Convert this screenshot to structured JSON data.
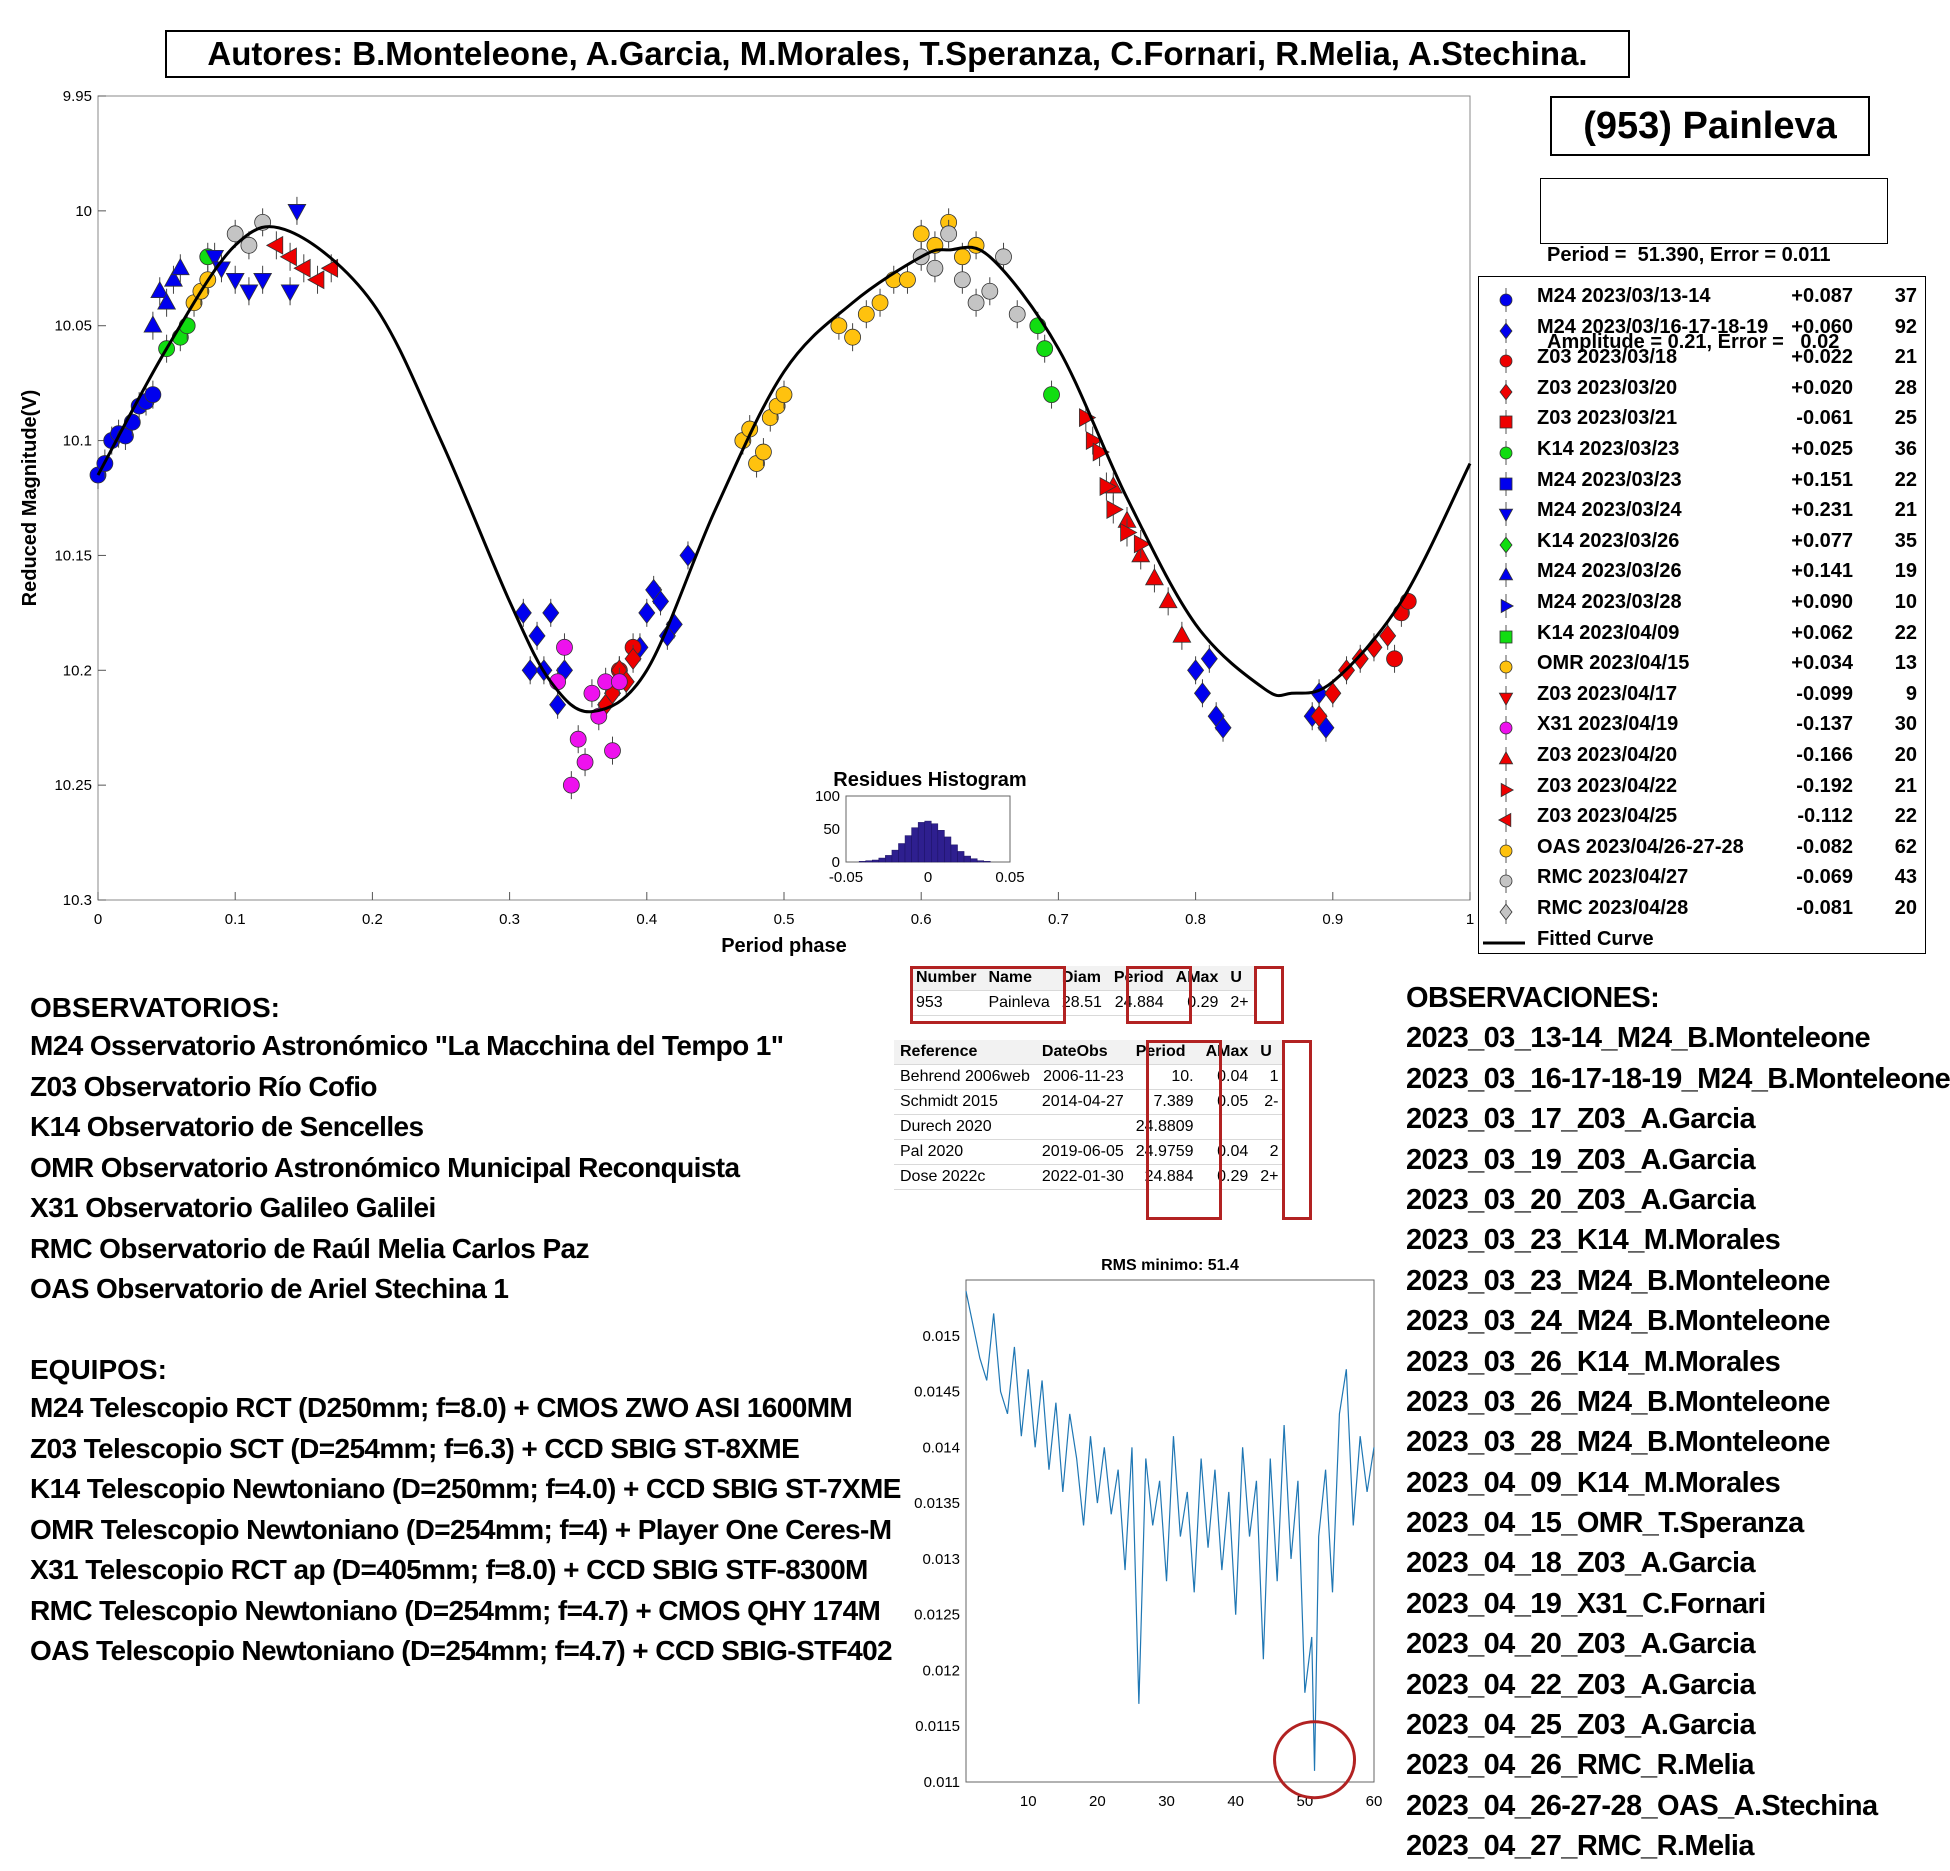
{
  "authors": "Autores: B.Monteleone, A.Garcia, M.Morales, T.Speranza, C.Fornari, R.Melia, A.Stechina.",
  "object_title": "(953) Painleva",
  "fit_info": {
    "period_line": "Period =  51.390, Error = 0.011",
    "amplitude_line": "Amplitude = 0.21, Error =   0.02"
  },
  "colors": {
    "blue": "#0000ee",
    "red": "#ee0000",
    "green": "#11dd11",
    "magenta": "#ee11ee",
    "orange": "#ffc20e",
    "gray": "#c4c4c4",
    "curve": "#000000",
    "rms": "#1f77b4",
    "hist": "#2e1f8f",
    "highlight": "#b22222"
  },
  "chart_data": [
    {
      "type": "scatter",
      "title": "",
      "xlabel": "Period phase",
      "ylabel": "Reduced Magnitude(V)",
      "xlim": [
        0,
        1
      ],
      "ylim": [
        9.95,
        10.3
      ],
      "y_reversed": true,
      "x_ticks": [
        "0",
        "0.1",
        "0.2",
        "0.3",
        "0.4",
        "0.5",
        "0.6",
        "0.7",
        "0.8",
        "0.9",
        "1"
      ],
      "y_ticks": [
        "9.95",
        "10",
        "10.05",
        "10.1",
        "10.15",
        "10.2",
        "10.25",
        "10.3"
      ],
      "grid": false,
      "legend_position": "right",
      "legend": [
        {
          "label": "M24 2023/03/13-14",
          "offset": "+0.087",
          "n": "37",
          "color": "blue",
          "marker": "circle"
        },
        {
          "label": "M24 2023/03/16-17-18-19",
          "offset": "+0.060",
          "n": "92",
          "color": "blue",
          "marker": "diamond"
        },
        {
          "label": "Z03 2023/03/18",
          "offset": "+0.022",
          "n": "21",
          "color": "red",
          "marker": "circle"
        },
        {
          "label": "Z03 2023/03/20",
          "offset": "+0.020",
          "n": "28",
          "color": "red",
          "marker": "diamond"
        },
        {
          "label": "Z03 2023/03/21",
          "offset": "-0.061",
          "n": "25",
          "color": "red",
          "marker": "square"
        },
        {
          "label": "K14 2023/03/23",
          "offset": "+0.025",
          "n": "36",
          "color": "green",
          "marker": "circle"
        },
        {
          "label": "M24 2023/03/23",
          "offset": "+0.151",
          "n": "22",
          "color": "blue",
          "marker": "square"
        },
        {
          "label": "M24 2023/03/24",
          "offset": "+0.231",
          "n": "21",
          "color": "blue",
          "marker": "tri-down"
        },
        {
          "label": "K14 2023/03/26",
          "offset": "+0.077",
          "n": "35",
          "color": "green",
          "marker": "diamond"
        },
        {
          "label": "M24 2023/03/26",
          "offset": "+0.141",
          "n": "19",
          "color": "blue",
          "marker": "tri-up"
        },
        {
          "label": "M24 2023/03/28",
          "offset": "+0.090",
          "n": "10",
          "color": "blue",
          "marker": "tri-right"
        },
        {
          "label": "K14 2023/04/09",
          "offset": "+0.062",
          "n": "22",
          "color": "green",
          "marker": "square"
        },
        {
          "label": "OMR 2023/04/15",
          "offset": "+0.034",
          "n": "13",
          "color": "orange",
          "marker": "circle"
        },
        {
          "label": "Z03 2023/04/17",
          "offset": "-0.099",
          "n": "9",
          "color": "red",
          "marker": "tri-down"
        },
        {
          "label": "X31 2023/04/19",
          "offset": "-0.137",
          "n": "30",
          "color": "magenta",
          "marker": "circle"
        },
        {
          "label": "Z03 2023/04/20",
          "offset": "-0.166",
          "n": "20",
          "color": "red",
          "marker": "tri-up"
        },
        {
          "label": "Z03 2023/04/22",
          "offset": "-0.192",
          "n": "21",
          "color": "red",
          "marker": "tri-right"
        },
        {
          "label": "Z03 2023/04/25",
          "offset": "-0.112",
          "n": "22",
          "color": "red",
          "marker": "tri-left"
        },
        {
          "label": "OAS 2023/04/26-27-28",
          "offset": "-0.082",
          "n": "62",
          "color": "orange",
          "marker": "circle"
        },
        {
          "label": "RMC 2023/04/27",
          "offset": "-0.069",
          "n": "43",
          "color": "gray",
          "marker": "circle"
        },
        {
          "label": "RMC 2023/04/28",
          "offset": "-0.081",
          "n": "20",
          "color": "gray",
          "marker": "diamond"
        },
        {
          "label": "Fitted Curve",
          "offset": "",
          "n": "",
          "color": "curve",
          "marker": "line"
        }
      ],
      "fitted_curve": {
        "x": [
          0,
          0.05,
          0.1,
          0.14,
          0.2,
          0.25,
          0.3,
          0.33,
          0.36,
          0.4,
          0.45,
          0.5,
          0.55,
          0.6,
          0.62,
          0.65,
          0.7,
          0.75,
          0.8,
          0.85,
          0.87,
          0.9,
          0.95,
          1.0
        ],
        "y": [
          10.115,
          10.06,
          10.015,
          10.009,
          10.04,
          10.1,
          10.17,
          10.205,
          10.218,
          10.2,
          10.13,
          10.07,
          10.04,
          10.02,
          10.017,
          10.02,
          10.06,
          10.125,
          10.18,
          10.208,
          10.21,
          10.205,
          10.17,
          10.11
        ]
      },
      "series": [
        {
          "name": "M24 2023/03/13-14",
          "color": "blue",
          "marker": "circle",
          "x": [
            0.0,
            0.005,
            0.01,
            0.015,
            0.02,
            0.025,
            0.03,
            0.035,
            0.04
          ],
          "y": [
            10.115,
            10.11,
            10.1,
            10.097,
            10.098,
            10.092,
            10.085,
            10.083,
            10.08
          ]
        },
        {
          "name": "M24 2023/03/16-17-18-19",
          "color": "blue",
          "marker": "diamond",
          "x": [
            0.31,
            0.315,
            0.32,
            0.325,
            0.33,
            0.335,
            0.34,
            0.395,
            0.4,
            0.405,
            0.41,
            0.415,
            0.42,
            0.43,
            0.8,
            0.805,
            0.81,
            0.815,
            0.82,
            0.885,
            0.89,
            0.895
          ],
          "y": [
            10.175,
            10.2,
            10.185,
            10.2,
            10.175,
            10.215,
            10.2,
            10.19,
            10.175,
            10.165,
            10.17,
            10.185,
            10.18,
            10.15,
            10.2,
            10.21,
            10.195,
            10.22,
            10.225,
            10.22,
            10.21,
            10.225
          ]
        },
        {
          "name": "Z03 2023/03/18",
          "color": "red",
          "marker": "circle",
          "x": [
            0.38,
            0.39,
            0.945,
            0.95,
            0.955
          ],
          "y": [
            10.2,
            10.19,
            10.195,
            10.175,
            10.17
          ]
        },
        {
          "name": "Z03 2023/03/20",
          "color": "red",
          "marker": "diamond",
          "x": [
            0.37,
            0.375,
            0.38,
            0.385,
            0.39,
            0.89,
            0.9,
            0.91,
            0.92,
            0.93,
            0.94
          ],
          "y": [
            10.215,
            10.21,
            10.2,
            10.205,
            10.195,
            10.22,
            10.21,
            10.2,
            10.195,
            10.19,
            10.185
          ]
        },
        {
          "name": "K14 2023/03/23",
          "color": "green",
          "marker": "circle",
          "x": [
            0.05,
            0.06,
            0.065,
            0.08,
            0.685,
            0.69,
            0.695
          ],
          "y": [
            10.06,
            10.055,
            10.05,
            10.02,
            10.05,
            10.06,
            10.08
          ]
        },
        {
          "name": "M24 2023/03/24",
          "color": "blue",
          "marker": "tri-down",
          "x": [
            0.085,
            0.09,
            0.1,
            0.11,
            0.12,
            0.14,
            0.145
          ],
          "y": [
            10.02,
            10.025,
            10.03,
            10.035,
            10.03,
            10.035,
            10.0
          ]
        },
        {
          "name": "M24 2023/03/26",
          "color": "blue",
          "marker": "tri-up",
          "x": [
            0.04,
            0.045,
            0.05,
            0.055,
            0.06
          ],
          "y": [
            10.05,
            10.035,
            10.04,
            10.03,
            10.025
          ]
        },
        {
          "name": "OMR 2023/04/15",
          "color": "orange",
          "marker": "circle",
          "x": [
            0.47,
            0.475,
            0.48,
            0.485,
            0.49,
            0.495,
            0.5
          ],
          "y": [
            10.1,
            10.095,
            10.11,
            10.105,
            10.09,
            10.085,
            10.08
          ]
        },
        {
          "name": "X31 2023/04/19",
          "color": "magenta",
          "marker": "circle",
          "x": [
            0.335,
            0.34,
            0.345,
            0.35,
            0.355,
            0.36,
            0.365,
            0.37,
            0.375,
            0.38
          ],
          "y": [
            10.205,
            10.19,
            10.25,
            10.23,
            10.24,
            10.21,
            10.22,
            10.205,
            10.235,
            10.205
          ]
        },
        {
          "name": "Z03 2023/04/20",
          "color": "red",
          "marker": "tri-up",
          "x": [
            0.74,
            0.75,
            0.76,
            0.77,
            0.78,
            0.79
          ],
          "y": [
            10.12,
            10.135,
            10.15,
            10.16,
            10.17,
            10.185
          ]
        },
        {
          "name": "Z03 2023/04/22",
          "color": "red",
          "marker": "tri-right",
          "x": [
            0.72,
            0.725,
            0.73,
            0.735,
            0.74,
            0.75,
            0.76
          ],
          "y": [
            10.09,
            10.1,
            10.105,
            10.12,
            10.13,
            10.14,
            10.145
          ]
        },
        {
          "name": "Z03 2023/04/25",
          "color": "red",
          "marker": "tri-left",
          "x": [
            0.13,
            0.14,
            0.15,
            0.16,
            0.17
          ],
          "y": [
            10.015,
            10.02,
            10.025,
            10.03,
            10.025
          ]
        },
        {
          "name": "OAS 2023/04/26-27-28",
          "color": "orange",
          "marker": "circle",
          "x": [
            0.07,
            0.075,
            0.08,
            0.54,
            0.55,
            0.56,
            0.57,
            0.58,
            0.59,
            0.6,
            0.61,
            0.62,
            0.63,
            0.64
          ],
          "y": [
            10.04,
            10.035,
            10.03,
            10.05,
            10.055,
            10.045,
            10.04,
            10.03,
            10.03,
            10.01,
            10.015,
            10.005,
            10.02,
            10.015
          ]
        },
        {
          "name": "RMC 2023/04/27",
          "color": "gray",
          "marker": "circle",
          "x": [
            0.1,
            0.11,
            0.12,
            0.6,
            0.61,
            0.62,
            0.63,
            0.64,
            0.65,
            0.66,
            0.67
          ],
          "y": [
            10.01,
            10.015,
            10.005,
            10.02,
            10.025,
            10.01,
            10.03,
            10.04,
            10.035,
            10.02,
            10.045
          ]
        }
      ]
    },
    {
      "type": "bar",
      "title": "Residues Histogram",
      "xlim": [
        -0.05,
        0.05
      ],
      "ylim": [
        0,
        100
      ],
      "x_ticks": [
        "-0.05",
        "0",
        "0.05"
      ],
      "y_ticks": [
        "0",
        "50",
        "100"
      ],
      "bin_width": 0.004,
      "bin_centers": [
        -0.044,
        -0.04,
        -0.036,
        -0.032,
        -0.028,
        -0.024,
        -0.02,
        -0.016,
        -0.012,
        -0.008,
        -0.004,
        0.0,
        0.004,
        0.008,
        0.012,
        0.016,
        0.02,
        0.024,
        0.028,
        0.032,
        0.036,
        0.04
      ],
      "values": [
        0,
        1,
        2,
        3,
        6,
        10,
        18,
        28,
        40,
        52,
        60,
        62,
        58,
        48,
        38,
        26,
        16,
        9,
        5,
        2,
        1,
        0
      ]
    },
    {
      "type": "line",
      "title": "RMS minimo: 51.4",
      "xlim": [
        1,
        60
      ],
      "ylim": [
        0.011,
        0.0155
      ],
      "x_ticks": [
        "10",
        "20",
        "30",
        "40",
        "50",
        "60"
      ],
      "y_ticks": [
        "0.011",
        "0.0115",
        "0.012",
        "0.0125",
        "0.013",
        "0.0135",
        "0.014",
        "0.0145",
        "0.015"
      ],
      "x": [
        1,
        2,
        3,
        4,
        5,
        6,
        7,
        8,
        9,
        10,
        11,
        12,
        13,
        14,
        15,
        16,
        17,
        18,
        19,
        20,
        21,
        22,
        23,
        24,
        25,
        26,
        27,
        28,
        29,
        30,
        31,
        32,
        33,
        34,
        35,
        36,
        37,
        38,
        39,
        40,
        41,
        42,
        43,
        44,
        45,
        46,
        47,
        48,
        49,
        50,
        51,
        51.4,
        52,
        53,
        54,
        55,
        56,
        57,
        58,
        59,
        60
      ],
      "y": [
        0.0154,
        0.0151,
        0.0148,
        0.0146,
        0.0152,
        0.0145,
        0.0143,
        0.0149,
        0.0141,
        0.0147,
        0.014,
        0.0146,
        0.0138,
        0.0144,
        0.0136,
        0.0143,
        0.0139,
        0.0133,
        0.0141,
        0.0135,
        0.014,
        0.0134,
        0.0138,
        0.0129,
        0.014,
        0.0117,
        0.0139,
        0.0133,
        0.0137,
        0.0128,
        0.0141,
        0.0132,
        0.0136,
        0.0127,
        0.0139,
        0.0131,
        0.0138,
        0.0129,
        0.0136,
        0.0125,
        0.014,
        0.0132,
        0.0137,
        0.0121,
        0.0139,
        0.0128,
        0.0142,
        0.013,
        0.0137,
        0.0118,
        0.0123,
        0.0111,
        0.0132,
        0.0138,
        0.0127,
        0.0143,
        0.0147,
        0.0133,
        0.0141,
        0.0136,
        0.014
      ],
      "highlight_x": 51.4
    }
  ],
  "lcdb_table": {
    "headers": [
      "Number",
      "Name",
      "Diam",
      "Period",
      "AMax",
      "U"
    ],
    "row": [
      "953",
      "Painleva",
      "28.51",
      "24.884",
      "0.29",
      "2+"
    ]
  },
  "ref_table": {
    "headers": [
      "Reference",
      "DateObs",
      "Period",
      "AMax",
      "U"
    ],
    "rows": [
      [
        "Behrend 2006web",
        "2006-11-23",
        "10.",
        "0.04",
        "1"
      ],
      [
        "Schmidt 2015",
        "2014-04-27",
        "7.389",
        "0.05",
        "2-"
      ],
      [
        "Durech 2020",
        "",
        "24.8809",
        "",
        ""
      ],
      [
        "Pal 2020",
        "2019-06-05",
        "24.9759",
        "0.04",
        "2"
      ],
      [
        "Dose 2022c",
        "2022-01-30",
        "24.884",
        "0.29",
        "2+"
      ]
    ]
  },
  "observatorios": {
    "title": "OBSERVATORIOS:",
    "items": [
      "M24 Osservatorio Astronómico \"La Macchina del Tempo 1\"",
      "Z03 Observatorio Río Cofio",
      "K14 Observatorio de Sencelles",
      "OMR Observatorio Astronómico Municipal Reconquista",
      "X31 Observatorio Galileo Galilei",
      "RMC Observatorio de Raúl Melia Carlos Paz",
      "OAS Observatorio de Ariel Stechina 1"
    ]
  },
  "equipos": {
    "title": "EQUIPOS:",
    "items": [
      "M24 Telescopio RCT (D250mm; f=8.0) + CMOS ZWO ASI 1600MM",
      "Z03 Telescopio SCT (D=254mm; f=6.3) + CCD SBIG ST-8XME",
      "K14 Telescopio Newtoniano (D=250mm; f=4.0) + CCD SBIG ST-7XME",
      "OMR Telescopio Newtoniano (D=254mm; f=4) + Player One Ceres-M",
      "X31 Telescopio RCT ap (D=405mm; f=8.0) + CCD SBIG STF-8300M",
      "RMC Telescopio Newtoniano (D=254mm; f=4.7) + CMOS QHY 174M",
      "OAS Telescopio Newtoniano (D=254mm; f=4.7) + CCD SBIG-STF402"
    ]
  },
  "observaciones": {
    "title": "OBSERVACIONES:",
    "items": [
      "2023_03_13-14_M24_B.Monteleone",
      "2023_03_16-17-18-19_M24_B.Monteleone",
      "2023_03_17_Z03_A.Garcia",
      "2023_03_19_Z03_A.Garcia",
      "2023_03_20_Z03_A.Garcia",
      "2023_03_23_K14_M.Morales",
      "2023_03_23_M24_B.Monteleone",
      "2023_03_24_M24_B.Monteleone",
      "2023_03_26_K14_M.Morales",
      "2023_03_26_M24_B.Monteleone",
      "2023_03_28_M24_B.Monteleone",
      "2023_04_09_K14_M.Morales",
      "2023_04_15_OMR_T.Speranza",
      "2023_04_18_Z03_A.Garcia",
      "2023_04_19_X31_C.Fornari",
      "2023_04_20_Z03_A.Garcia",
      "2023_04_22_Z03_A.Garcia",
      "2023_04_25_Z03_A.Garcia",
      "2023_04_26_RMC_R.Melia",
      "2023_04_26-27-28_OAS_A.Stechina",
      "2023_04_27_RMC_R.Melia"
    ]
  }
}
